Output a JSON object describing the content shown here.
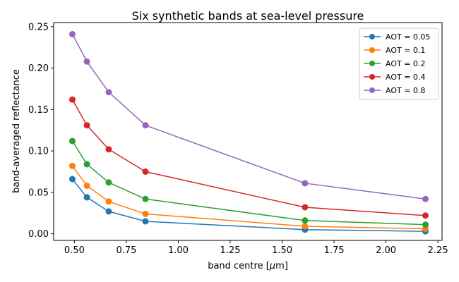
{
  "chart_data": {
    "type": "line",
    "title": "Six synthetic bands at sea-level pressure",
    "xlabel": "band centre [μm]",
    "ylabel": "band-averaged reflectance",
    "x": [
      0.49,
      0.56,
      0.665,
      0.842,
      1.61,
      2.19
    ],
    "xlim": [
      0.4,
      2.27
    ],
    "ylim": [
      -0.008,
      0.255
    ],
    "xticks": [
      "0.50",
      "0.75",
      "1.00",
      "1.25",
      "1.50",
      "1.75",
      "2.00",
      "2.25"
    ],
    "xtick_values": [
      0.5,
      0.75,
      1.0,
      1.25,
      1.5,
      1.75,
      2.0,
      2.25
    ],
    "yticks": [
      "0.00",
      "0.05",
      "0.10",
      "0.15",
      "0.20",
      "0.25"
    ],
    "ytick_values": [
      0.0,
      0.05,
      0.1,
      0.15,
      0.2,
      0.25
    ],
    "grid": false,
    "legend_position": "top-right",
    "series": [
      {
        "name": "AOT = 0.05",
        "color": "#1f77b4",
        "values": [
          0.066,
          0.044,
          0.027,
          0.015,
          0.005,
          0.003
        ]
      },
      {
        "name": "AOT = 0.1",
        "color": "#ff7f0e",
        "values": [
          0.082,
          0.058,
          0.039,
          0.024,
          0.009,
          0.006
        ]
      },
      {
        "name": "AOT = 0.2",
        "color": "#2ca02c",
        "values": [
          0.112,
          0.084,
          0.062,
          0.042,
          0.016,
          0.011
        ]
      },
      {
        "name": "AOT = 0.4",
        "color": "#d62728",
        "values": [
          0.162,
          0.131,
          0.102,
          0.075,
          0.032,
          0.022
        ]
      },
      {
        "name": "AOT = 0.8",
        "color": "#9467bd",
        "values": [
          0.241,
          0.208,
          0.171,
          0.131,
          0.061,
          0.042
        ]
      }
    ]
  }
}
